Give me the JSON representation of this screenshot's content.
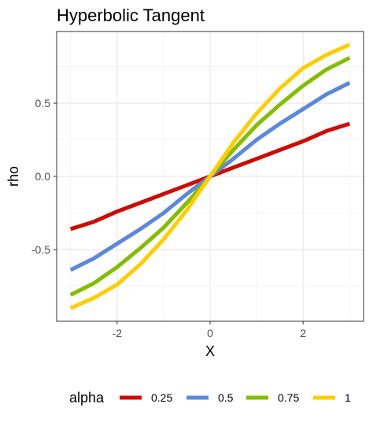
{
  "chart_data": {
    "type": "line",
    "title": "Hyperbolic Tangent",
    "xlabel": "X",
    "ylabel": "rho",
    "xlim": [
      -3.3,
      3.3
    ],
    "ylim": [
      -0.99,
      0.99
    ],
    "x_ticks": [
      -2,
      0,
      2
    ],
    "x_tick_labels": [
      "-2",
      "0",
      "2"
    ],
    "y_ticks": [
      -0.5,
      0.0,
      0.5
    ],
    "y_tick_labels": [
      "-0.5",
      "0.0",
      "0.5"
    ],
    "grid": true,
    "legend_position": "bottom",
    "legend_title": "alpha",
    "x": [
      -3,
      -2.5,
      -2,
      -1.5,
      -1,
      -0.5,
      0,
      0.5,
      1,
      1.5,
      2,
      2.5,
      3
    ],
    "series": [
      {
        "name": "0.25",
        "color": "#cc0c00",
        "values": [
          -0.36,
          -0.31,
          -0.24,
          -0.18,
          -0.12,
          -0.06,
          0.0,
          0.06,
          0.12,
          0.18,
          0.24,
          0.31,
          0.36
        ]
      },
      {
        "name": "0.5",
        "color": "#5c88da",
        "values": [
          -0.64,
          -0.56,
          -0.46,
          -0.36,
          -0.25,
          -0.12,
          0.0,
          0.12,
          0.25,
          0.36,
          0.46,
          0.56,
          0.64
        ]
      },
      {
        "name": "0.75",
        "color": "#84bd00",
        "values": [
          -0.81,
          -0.73,
          -0.62,
          -0.49,
          -0.35,
          -0.18,
          0.0,
          0.18,
          0.35,
          0.49,
          0.62,
          0.73,
          0.81
        ]
      },
      {
        "name": "1",
        "color": "#ffcd00",
        "values": [
          -0.9,
          -0.83,
          -0.74,
          -0.6,
          -0.43,
          -0.23,
          0.0,
          0.23,
          0.43,
          0.6,
          0.74,
          0.83,
          0.9
        ]
      }
    ]
  }
}
